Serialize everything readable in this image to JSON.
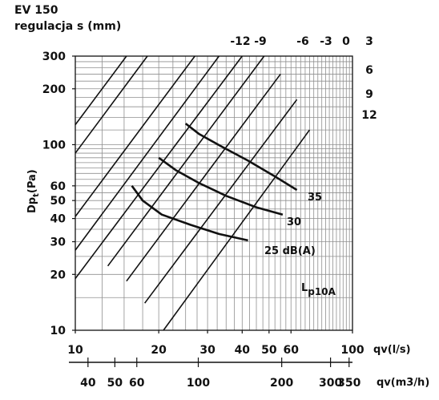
{
  "chart_data": {
    "type": "line",
    "title": "EV 150",
    "subtitle": "regulacja s (mm)",
    "xlabel": "qv(l/s)",
    "x2label": "qv(m3/h)",
    "ylabel": "Dpt(Pa)",
    "ylabel_main": "Dp",
    "ylabel_sub": "t",
    "ylabel_unit": "(Pa)",
    "x_scale": "log",
    "y_scale": "log",
    "xlim": [
      10,
      100
    ],
    "ylim": [
      10,
      300
    ],
    "grid": true,
    "x_ticks": [
      "10",
      "20",
      "30",
      "40",
      "50",
      "60",
      "100"
    ],
    "x_tick_values": [
      10,
      20,
      30,
      40,
      50,
      60,
      100
    ],
    "x2_ticks": [
      "40",
      "50",
      "60",
      "100",
      "200",
      "300",
      "350"
    ],
    "x2_tick_values": [
      40,
      50,
      60,
      100,
      200,
      300,
      350
    ],
    "y_ticks": [
      "10",
      "20",
      "30",
      "40",
      "50",
      "60",
      "100",
      "200",
      "300"
    ],
    "y_tick_values": [
      10,
      20,
      30,
      40,
      50,
      60,
      100,
      200,
      300
    ],
    "series": [
      {
        "name": "-12",
        "values": [
          [
            15.3,
            300
          ],
          [
            10,
            128
          ]
        ]
      },
      {
        "name": "-9",
        "values": [
          [
            18.2,
            300
          ],
          [
            10,
            90
          ]
        ]
      },
      {
        "name": "-6",
        "values": [
          [
            27,
            300
          ],
          [
            10,
            41
          ]
        ]
      },
      {
        "name": "-3",
        "values": [
          [
            33,
            300
          ],
          [
            10,
            27
          ]
        ]
      },
      {
        "name": "0",
        "values": [
          [
            40,
            300
          ],
          [
            10,
            19
          ]
        ]
      },
      {
        "name": "3",
        "values": [
          [
            48,
            300
          ],
          [
            13.1,
            22.2
          ]
        ]
      },
      {
        "name": "6",
        "values": [
          [
            55,
            240
          ],
          [
            15.3,
            18.4
          ]
        ]
      },
      {
        "name": "9",
        "values": [
          [
            63,
            175
          ],
          [
            17.8,
            14
          ]
        ]
      },
      {
        "name": "12",
        "values": [
          [
            70,
            120
          ],
          [
            20.8,
            10
          ]
        ]
      }
    ],
    "sound_series": [
      {
        "name": "35",
        "values": [
          [
            25,
            130
          ],
          [
            28,
            114
          ],
          [
            34,
            97
          ],
          [
            42,
            82
          ],
          [
            52,
            68
          ],
          [
            63,
            57
          ]
        ]
      },
      {
        "name": "30",
        "values": [
          [
            20,
            85
          ],
          [
            23,
            73
          ],
          [
            28,
            62
          ],
          [
            35,
            53
          ],
          [
            45,
            46
          ],
          [
            56,
            42
          ]
        ]
      },
      {
        "name": "25 dB(A)",
        "values": [
          [
            16,
            60
          ],
          [
            17.5,
            50
          ],
          [
            20.5,
            42
          ],
          [
            26,
            37
          ],
          [
            33,
            33
          ],
          [
            42,
            30.5
          ]
        ]
      }
    ],
    "annotations": {
      "s_top": [
        "-12",
        "-9",
        "-6",
        "-3",
        "0"
      ],
      "s_right": [
        "3",
        "6",
        "9",
        "12"
      ],
      "lp_label": "Lp10A",
      "lp_main": "L",
      "lp_sub": "p10A"
    }
  }
}
